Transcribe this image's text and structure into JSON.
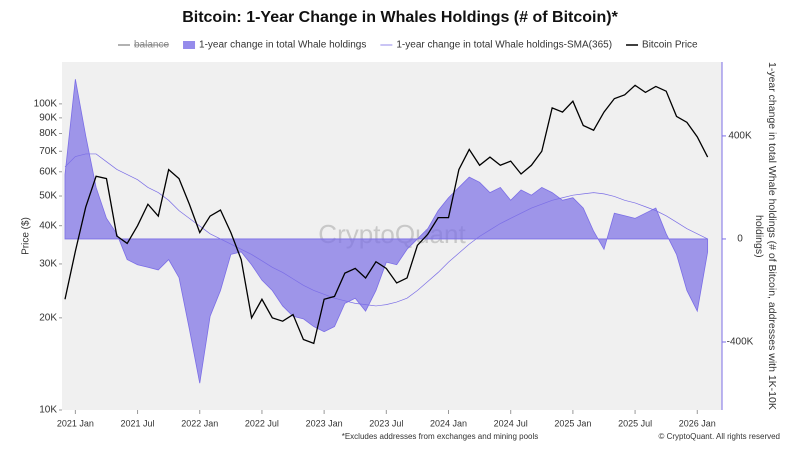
{
  "chart_data": {
    "type": "line",
    "title": "Bitcoin: 1-Year Change in Whales Holdings (# of Bitcoin)*",
    "y_label": "Price ($)",
    "y2_label": "1-year change in total Whale holdings (# of Bitcoin, addresses with 1K-10K holdings)",
    "watermark": "CryptoQuant",
    "footnote": "*Excludes addresses from exchanges and mining pools",
    "credit": "© CryptoQuant. All rights reserved",
    "log_y": true,
    "legend_position": "top",
    "x": [
      "2020-12",
      "2021-01",
      "2021-02",
      "2021-03",
      "2021-04",
      "2021-05",
      "2021-06",
      "2021-07",
      "2021-08",
      "2021-09",
      "2021-10",
      "2021-11",
      "2021-12",
      "2022-01",
      "2022-02",
      "2022-03",
      "2022-04",
      "2022-05",
      "2022-06",
      "2022-07",
      "2022-08",
      "2022-09",
      "2022-10",
      "2022-11",
      "2022-12",
      "2023-01",
      "2023-02",
      "2023-03",
      "2023-04",
      "2023-05",
      "2023-06",
      "2023-07",
      "2023-08",
      "2023-09",
      "2023-10",
      "2023-11",
      "2023-12",
      "2024-01",
      "2024-02",
      "2024-03",
      "2024-04",
      "2024-05",
      "2024-06",
      "2024-07",
      "2024-08",
      "2024-09",
      "2024-10",
      "2024-11",
      "2024-12",
      "2025-01",
      "2025-02",
      "2025-03",
      "2025-04",
      "2025-05",
      "2025-06",
      "2025-07",
      "2025-08",
      "2025-09",
      "2025-10",
      "2025-11",
      "2025-12",
      "2026-01",
      "2026-02"
    ],
    "xlim": [
      "2020-12",
      "2026-03"
    ],
    "xticks": [
      {
        "value": "2021-01",
        "label": "2021 Jan"
      },
      {
        "value": "2021-07",
        "label": "2021 Jul"
      },
      {
        "value": "2022-01",
        "label": "2022 Jan"
      },
      {
        "value": "2022-07",
        "label": "2022 Jul"
      },
      {
        "value": "2023-01",
        "label": "2023 Jan"
      },
      {
        "value": "2023-07",
        "label": "2023 Jul"
      },
      {
        "value": "2024-01",
        "label": "2024 Jan"
      },
      {
        "value": "2024-07",
        "label": "2024 Jul"
      },
      {
        "value": "2025-01",
        "label": "2025 Jan"
      },
      {
        "value": "2025-07",
        "label": "2025 Jul"
      },
      {
        "value": "2026-01",
        "label": "2026 Jan"
      }
    ],
    "ylim": [
      10000,
      137000
    ],
    "yticks": [
      {
        "value": 10000,
        "label": "10K"
      },
      {
        "value": 20000,
        "label": "20K"
      },
      {
        "value": 30000,
        "label": "30K"
      },
      {
        "value": 40000,
        "label": "40K"
      },
      {
        "value": 50000,
        "label": "50K"
      },
      {
        "value": 60000,
        "label": "60K"
      },
      {
        "value": 70000,
        "label": "70K"
      },
      {
        "value": 80000,
        "label": "80K"
      },
      {
        "value": 90000,
        "label": "90K"
      },
      {
        "value": 100000,
        "label": "100K"
      }
    ],
    "y2lim": [
      -664000,
      687000
    ],
    "y2ticks": [
      {
        "value": -400000,
        "label": "-400K"
      },
      0,
      {
        "value": 400000,
        "label": "400K"
      }
    ],
    "series": [
      {
        "name": "balance",
        "color": "#999999",
        "hidden": true
      },
      {
        "name": "1-year change in total Whale holdings",
        "color": "#7b6ee6",
        "style": "area",
        "axis": "y2",
        "values": [
          250000,
          620000,
          400000,
          200000,
          80000,
          20000,
          -80000,
          -100000,
          -110000,
          -120000,
          -80000,
          -150000,
          -350000,
          -560000,
          -300000,
          -200000,
          -60000,
          -50000,
          -100000,
          -160000,
          -200000,
          -260000,
          -300000,
          -310000,
          -340000,
          -360000,
          -340000,
          -250000,
          -230000,
          -280000,
          -200000,
          -90000,
          -100000,
          -40000,
          0,
          40000,
          110000,
          160000,
          200000,
          240000,
          220000,
          180000,
          200000,
          150000,
          190000,
          170000,
          200000,
          180000,
          150000,
          160000,
          120000,
          30000,
          -40000,
          100000,
          90000,
          80000,
          100000,
          120000,
          20000,
          -60000,
          -200000,
          -280000,
          -50000
        ]
      },
      {
        "name": "1-year change in total Whale holdings-SMA(365)",
        "color": "#7b6ee6",
        "style": "line",
        "axis": "y2",
        "values": [
          280000,
          320000,
          330000,
          330000,
          300000,
          270000,
          250000,
          230000,
          200000,
          180000,
          150000,
          110000,
          80000,
          50000,
          20000,
          0,
          -20000,
          -40000,
          -60000,
          -85000,
          -110000,
          -130000,
          -155000,
          -180000,
          -200000,
          -215000,
          -230000,
          -240000,
          -250000,
          -255000,
          -260000,
          -255000,
          -245000,
          -230000,
          -200000,
          -165000,
          -130000,
          -90000,
          -55000,
          -20000,
          10000,
          35000,
          60000,
          80000,
          100000,
          120000,
          135000,
          150000,
          160000,
          170000,
          175000,
          180000,
          175000,
          165000,
          150000,
          140000,
          125000,
          110000,
          90000,
          65000,
          40000,
          20000,
          0
        ]
      },
      {
        "name": "Bitcoin Price",
        "color": "#000000",
        "style": "line",
        "axis": "y",
        "values": [
          23000,
          33000,
          46000,
          58000,
          57000,
          37000,
          35000,
          40000,
          47000,
          43000,
          61000,
          57000,
          47000,
          38000,
          43000,
          45000,
          38000,
          31000,
          20000,
          23000,
          20000,
          19500,
          20500,
          17000,
          16500,
          23000,
          23500,
          28000,
          29000,
          27000,
          30500,
          29000,
          26000,
          27000,
          34500,
          37500,
          42500,
          42500,
          61000,
          71000,
          63000,
          67000,
          63000,
          65000,
          59000,
          63000,
          70000,
          97000,
          94000,
          102000,
          85000,
          82000,
          94000,
          104000,
          107000,
          115000,
          109000,
          114000,
          110000,
          91000,
          87000,
          78000,
          67000
        ]
      }
    ]
  }
}
